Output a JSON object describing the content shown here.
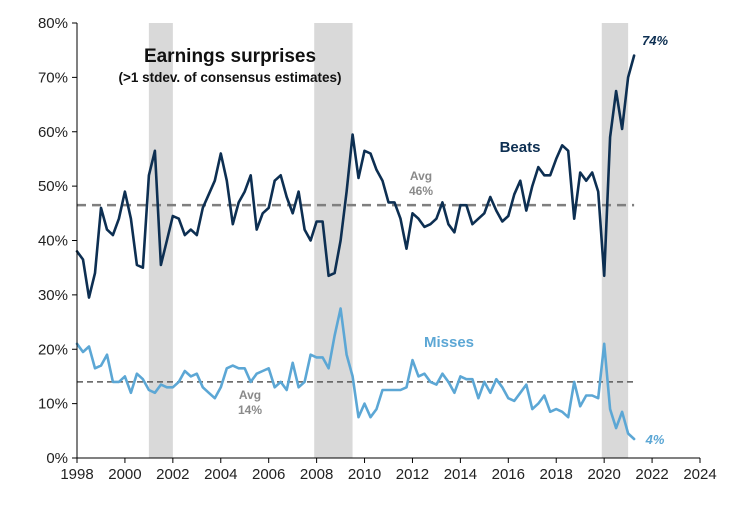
{
  "chart_data": {
    "type": "line",
    "title": "Earnings surprises",
    "subtitle": "(>1 stdev. of consensus estimates)",
    "xlim": [
      1998,
      2024
    ],
    "ylim": [
      0,
      80
    ],
    "x_ticks": [
      1998,
      2000,
      2002,
      2004,
      2006,
      2008,
      2010,
      2012,
      2014,
      2016,
      2018,
      2020,
      2022,
      2024
    ],
    "y_ticks": [
      0,
      10,
      20,
      30,
      40,
      50,
      60,
      70,
      80
    ],
    "y_tick_labels": [
      "0%",
      "10%",
      "20%",
      "30%",
      "40%",
      "50%",
      "60%",
      "70%",
      "80%"
    ],
    "grid": false,
    "recessions": [
      [
        2001.0,
        2002.0
      ],
      [
        2007.9,
        2009.5
      ],
      [
        2019.9,
        2021.0
      ]
    ],
    "series": [
      {
        "name": "Beats",
        "color": "#0d2f52",
        "x": [
          1998.0,
          1998.25,
          1998.5,
          1998.75,
          1999.0,
          1999.25,
          1999.5,
          1999.75,
          2000.0,
          2000.25,
          2000.5,
          2000.75,
          2001.0,
          2001.25,
          2001.5,
          2001.75,
          2002.0,
          2002.25,
          2002.5,
          2002.75,
          2003.0,
          2003.25,
          2003.5,
          2003.75,
          2004.0,
          2004.25,
          2004.5,
          2004.75,
          2005.0,
          2005.25,
          2005.5,
          2005.75,
          2006.0,
          2006.25,
          2006.5,
          2006.75,
          2007.0,
          2007.25,
          2007.5,
          2007.75,
          2008.0,
          2008.25,
          2008.5,
          2008.75,
          2009.0,
          2009.25,
          2009.5,
          2009.75,
          2010.0,
          2010.25,
          2010.5,
          2010.75,
          2011.0,
          2011.25,
          2011.5,
          2011.75,
          2012.0,
          2012.25,
          2012.5,
          2012.75,
          2013.0,
          2013.25,
          2013.5,
          2013.75,
          2014.0,
          2014.25,
          2014.5,
          2014.75,
          2015.0,
          2015.25,
          2015.5,
          2015.75,
          2016.0,
          2016.25,
          2016.5,
          2016.75,
          2017.0,
          2017.25,
          2017.5,
          2017.75,
          2018.0,
          2018.25,
          2018.5,
          2018.75,
          2019.0,
          2019.25,
          2019.5,
          2019.75,
          2020.0,
          2020.25,
          2020.5,
          2020.75,
          2021.0,
          2021.25
        ],
        "values": [
          38,
          36.5,
          29.5,
          34,
          46,
          42,
          41,
          44,
          49,
          44,
          35.5,
          35,
          52,
          56.5,
          35.5,
          40,
          44.5,
          44,
          41,
          42,
          41,
          46,
          48.5,
          51,
          56,
          51,
          43,
          47,
          49,
          52,
          42,
          45,
          46,
          51,
          52,
          48,
          45,
          49,
          42,
          40,
          43.5,
          43.5,
          33.5,
          34,
          40,
          49,
          59.5,
          51.5,
          56.5,
          56,
          53,
          51,
          47,
          47,
          44,
          38.5,
          45,
          44,
          42.5,
          43,
          44,
          47,
          43,
          41.5,
          46.5,
          46.5,
          43,
          44,
          45,
          48,
          45.5,
          43.5,
          44.5,
          48.5,
          51,
          45.5,
          50,
          53.5,
          52,
          52,
          55,
          57.5,
          56.5,
          44,
          52.5,
          51,
          52.5,
          49,
          33.5,
          59,
          67.5,
          60.5,
          70,
          74
        ]
      },
      {
        "name": "Misses",
        "color": "#5ca7d5",
        "x": [
          1998.0,
          1998.25,
          1998.5,
          1998.75,
          1999.0,
          1999.25,
          1999.5,
          1999.75,
          2000.0,
          2000.25,
          2000.5,
          2000.75,
          2001.0,
          2001.25,
          2001.5,
          2001.75,
          2002.0,
          2002.25,
          2002.5,
          2002.75,
          2003.0,
          2003.25,
          2003.5,
          2003.75,
          2004.0,
          2004.25,
          2004.5,
          2004.75,
          2005.0,
          2005.25,
          2005.5,
          2005.75,
          2006.0,
          2006.25,
          2006.5,
          2006.75,
          2007.0,
          2007.25,
          2007.5,
          2007.75,
          2008.0,
          2008.25,
          2008.5,
          2008.75,
          2009.0,
          2009.25,
          2009.5,
          2009.75,
          2010.0,
          2010.25,
          2010.5,
          2010.75,
          2011.0,
          2011.25,
          2011.5,
          2011.75,
          2012.0,
          2012.25,
          2012.5,
          2012.75,
          2013.0,
          2013.25,
          2013.5,
          2013.75,
          2014.0,
          2014.25,
          2014.5,
          2014.75,
          2015.0,
          2015.25,
          2015.5,
          2015.75,
          2016.0,
          2016.25,
          2016.5,
          2016.75,
          2017.0,
          2017.25,
          2017.5,
          2017.75,
          2018.0,
          2018.25,
          2018.5,
          2018.75,
          2019.0,
          2019.25,
          2019.5,
          2019.75,
          2020.0,
          2020.25,
          2020.5,
          2020.75,
          2021.0,
          2021.25
        ],
        "values": [
          21,
          19.5,
          20.5,
          16.5,
          17,
          19,
          14,
          14,
          15,
          12,
          15.5,
          14.5,
          12.5,
          12,
          13.5,
          13,
          13,
          14,
          16,
          15,
          15.5,
          13,
          12,
          11,
          13,
          16.5,
          17,
          16.5,
          16.5,
          14,
          15.5,
          16,
          16.5,
          13,
          14,
          12.5,
          17.5,
          13,
          14,
          19,
          18.5,
          18.5,
          16.5,
          22.5,
          27.5,
          19,
          15,
          7.5,
          10,
          7.5,
          9,
          12.5,
          12.5,
          12.5,
          12.5,
          13,
          18,
          15,
          15.5,
          14,
          13.5,
          15.5,
          14,
          12,
          15,
          14.5,
          14.5,
          11,
          14,
          12,
          14.5,
          13,
          11,
          10.5,
          12,
          13.5,
          9,
          10,
          11.5,
          8.5,
          9,
          8.5,
          7.5,
          14,
          9.5,
          11.5,
          11.5,
          11,
          21,
          9,
          5.5,
          8.5,
          4.5,
          3.5
        ]
      }
    ],
    "averages": [
      {
        "series": "Beats",
        "value": 46.5,
        "label_line1": "Avg",
        "label_line2": "46%",
        "color": "#7a7a7a"
      },
      {
        "series": "Misses",
        "value": 14,
        "label_line1": "Avg",
        "label_line2": "14%",
        "color": "#555555"
      }
    ],
    "end_labels": {
      "beats": "74%",
      "misses": "4%"
    },
    "legend": "inline"
  }
}
